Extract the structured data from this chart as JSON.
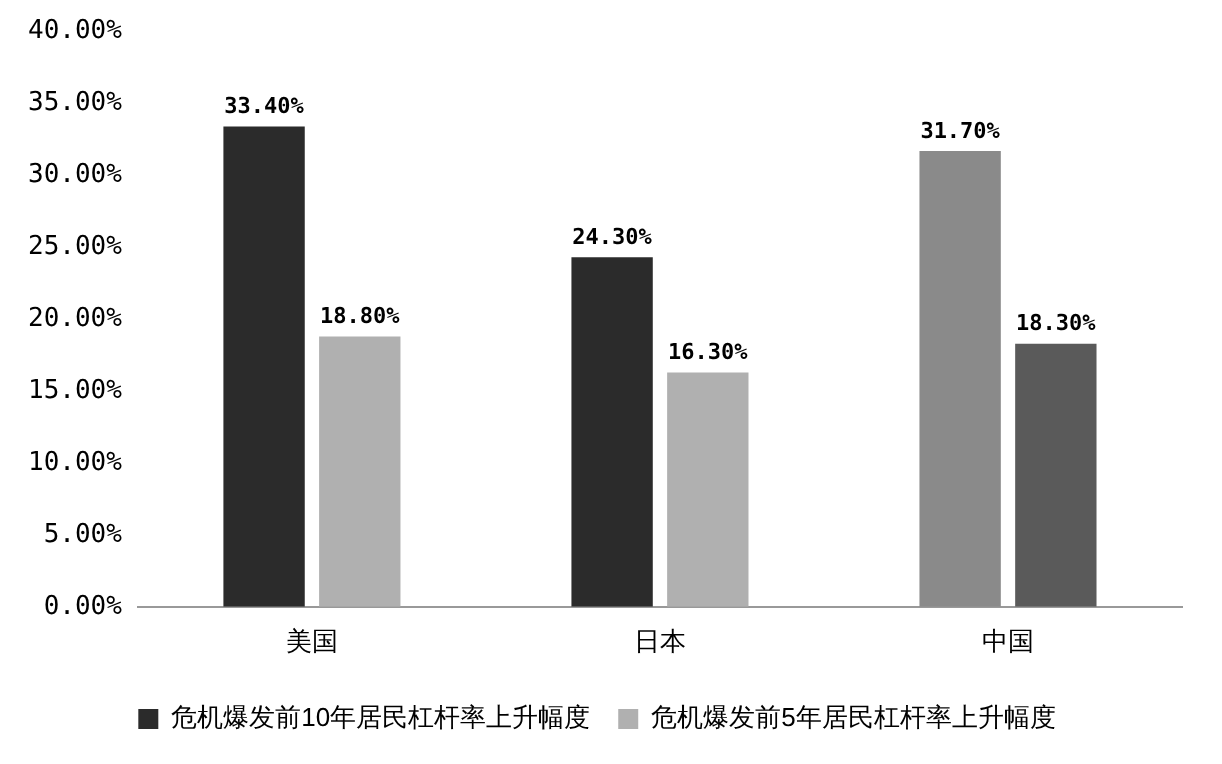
{
  "chart_data": {
    "type": "bar",
    "categories": [
      "美国",
      "日本",
      "中国"
    ],
    "series": [
      {
        "name": "危机爆发前10年居民杠杆率上升幅度",
        "color": "#2b2b2b",
        "colors": [
          "#2b2b2b",
          "#2b2b2b",
          "#8a8a8a"
        ],
        "values": [
          33.4,
          24.3,
          31.7
        ],
        "value_labels": [
          "33.40%",
          "24.30%",
          "31.70%"
        ]
      },
      {
        "name": "危机爆发前5年居民杠杆率上升幅度",
        "color": "#b0b0b0",
        "colors": [
          "#b0b0b0",
          "#b0b0b0",
          "#5a5a5a"
        ],
        "values": [
          18.8,
          16.3,
          18.3
        ],
        "value_labels": [
          "18.80%",
          "16.30%",
          "18.30%"
        ]
      }
    ],
    "ylim": [
      0,
      40
    ],
    "yticks": [
      {
        "value": 0,
        "label": "0.00%"
      },
      {
        "value": 5,
        "label": "5.00%"
      },
      {
        "value": 10,
        "label": "10.00%"
      },
      {
        "value": 15,
        "label": "15.00%"
      },
      {
        "value": 20,
        "label": "20.00%"
      },
      {
        "value": 25,
        "label": "25.00%"
      },
      {
        "value": 30,
        "label": "30.00%"
      },
      {
        "value": 35,
        "label": "35.00%"
      },
      {
        "value": 40,
        "label": "40.00%"
      }
    ],
    "grid": false,
    "legend": "bottom"
  }
}
